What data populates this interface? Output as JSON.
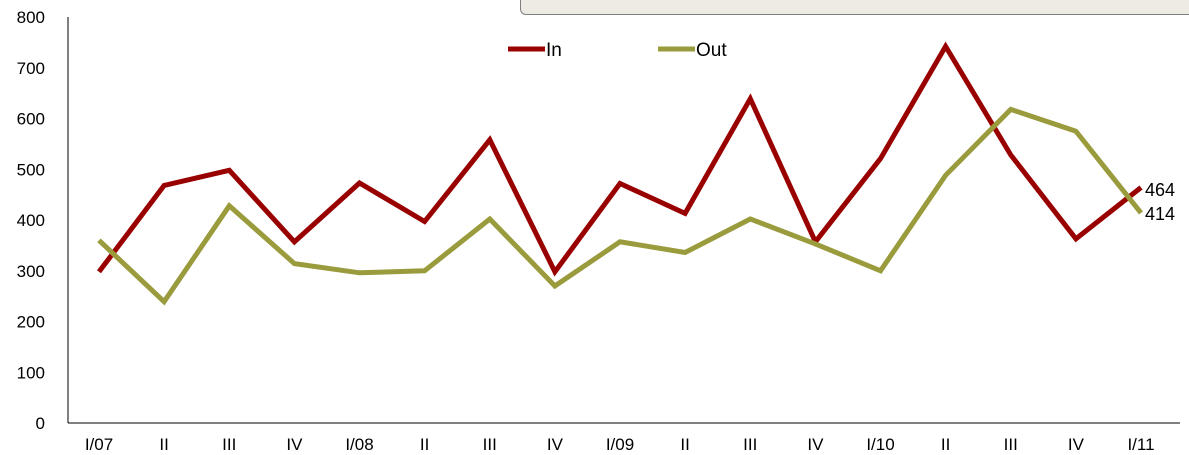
{
  "chart_data": {
    "type": "line",
    "categories": [
      "I/07",
      "II",
      "III",
      "IV",
      "I/08",
      "II",
      "III",
      "IV",
      "I/09",
      "II",
      "III",
      "IV",
      "I/10",
      "II",
      "III",
      "IV",
      "I/11"
    ],
    "series": [
      {
        "name": "In",
        "color": "#990000",
        "values": [
          298,
          468,
          498,
          357,
          473,
          397,
          558,
          298,
          472,
          413,
          639,
          357,
          521,
          742,
          528,
          363,
          464
        ]
      },
      {
        "name": "Out",
        "color": "#9a9b3c",
        "values": [
          360,
          239,
          428,
          314,
          296,
          300,
          402,
          270,
          357,
          336,
          402,
          353,
          300,
          488,
          618,
          575,
          414
        ]
      }
    ],
    "ylim": [
      0,
      800
    ],
    "yticks": [
      0,
      100,
      200,
      300,
      400,
      500,
      600,
      700,
      800
    ],
    "end_labels": [
      "464",
      "414"
    ],
    "legend_position": "top-center",
    "grid": false
  }
}
